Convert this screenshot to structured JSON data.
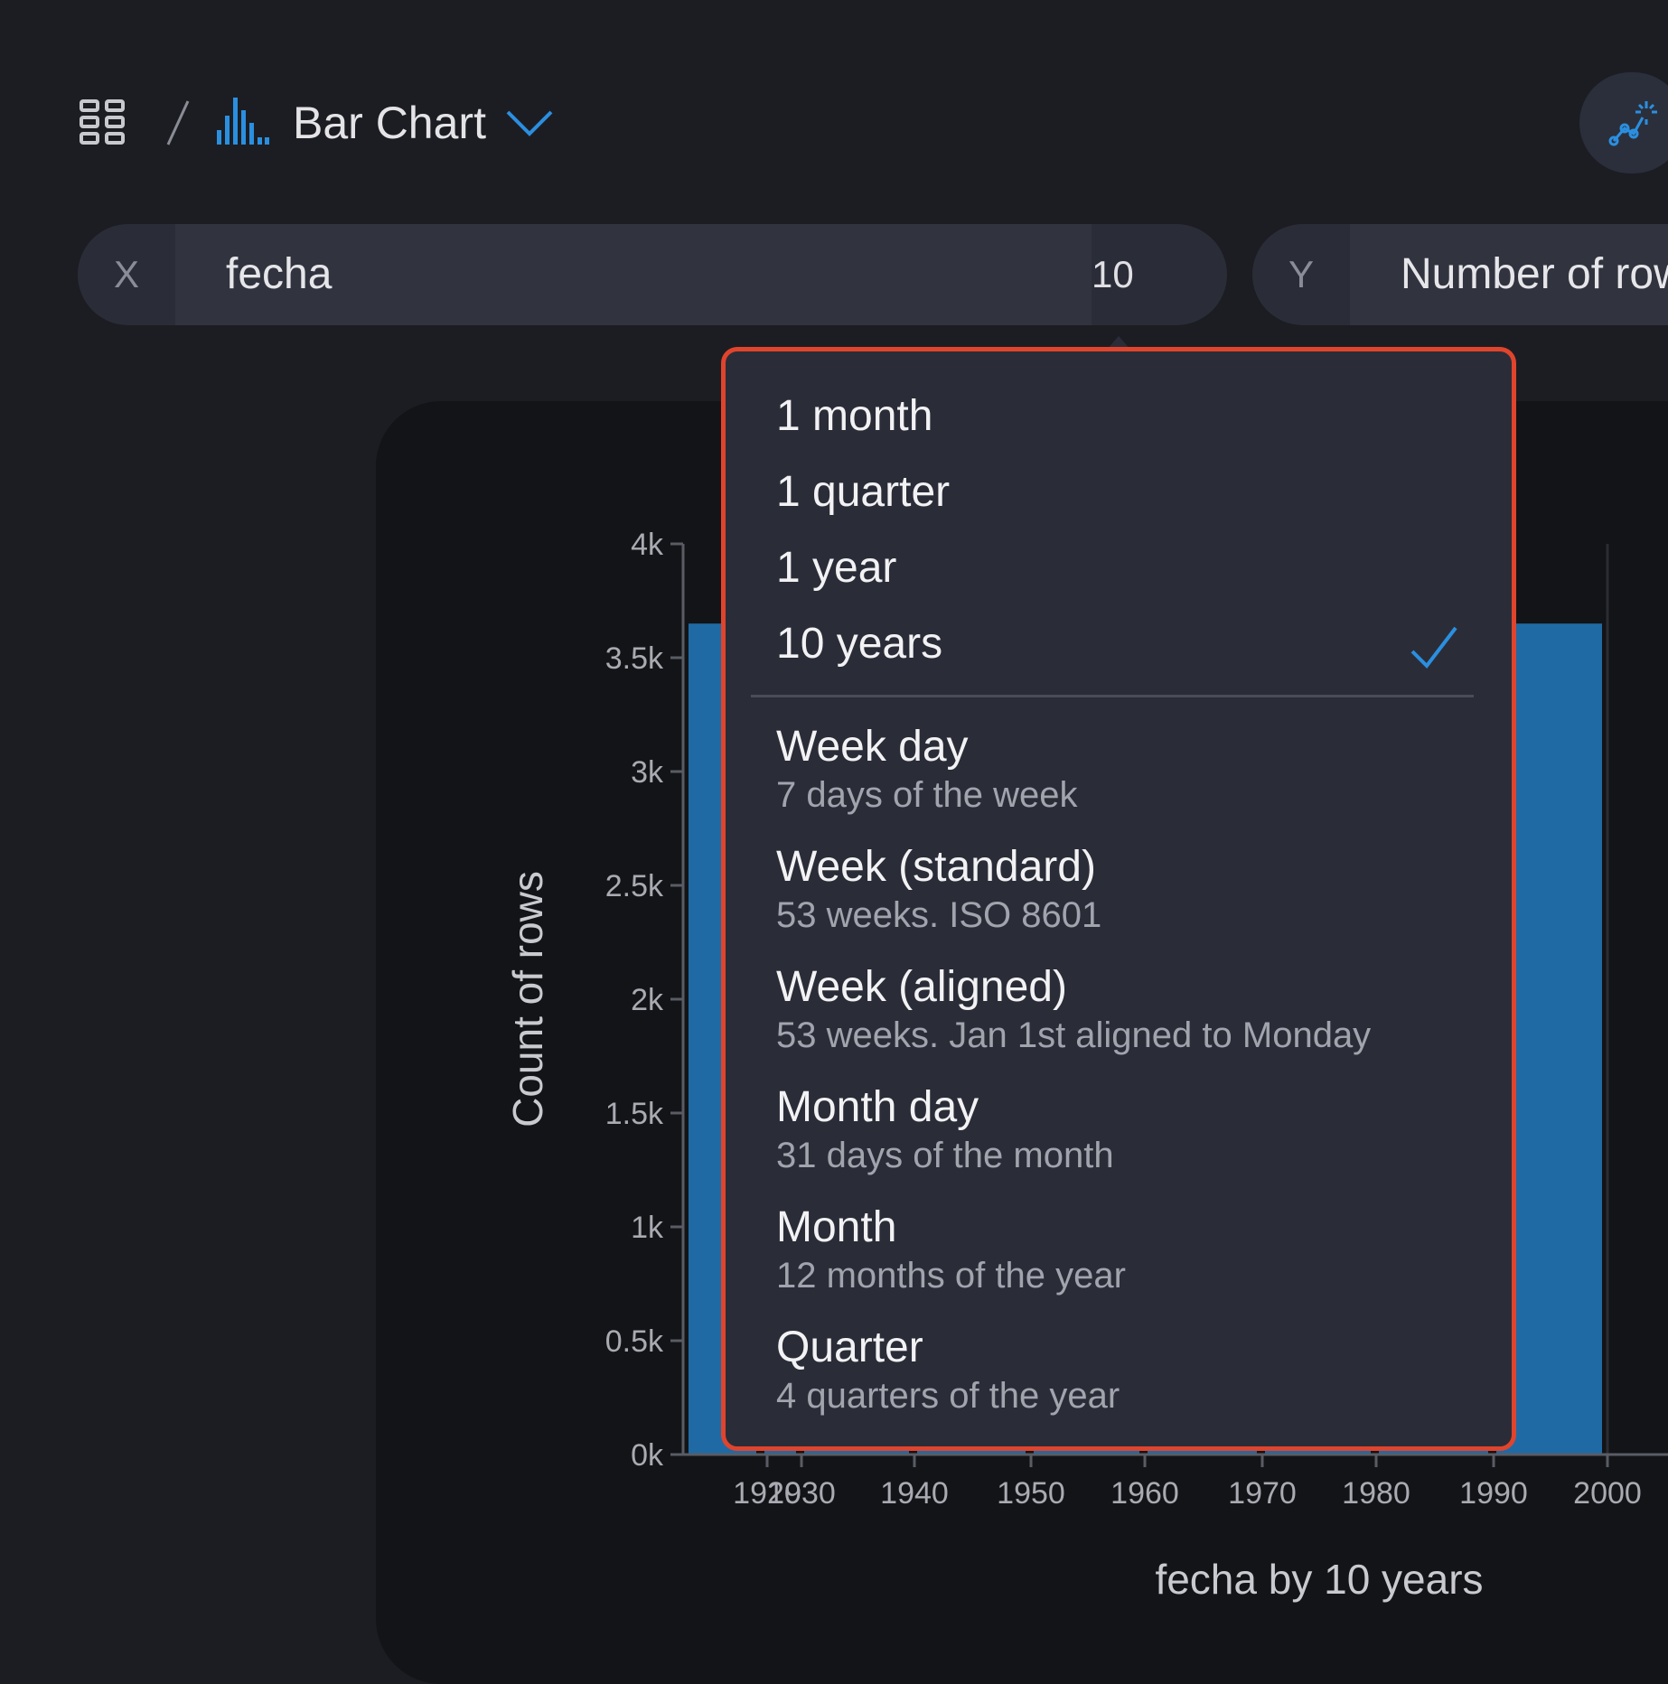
{
  "header": {
    "chart_type_label": "Bar Chart",
    "icons": {
      "nav": "grid-icon",
      "chart": "bar-chart-icon",
      "dropdown": "chevron-down-icon",
      "magic": "magic-wand-icon"
    }
  },
  "x_axis_selector": {
    "key": "X",
    "field": "fecha",
    "bin": "10 years"
  },
  "y_axis_selector": {
    "key": "Y",
    "field": "Number of rows"
  },
  "dropdown": {
    "simple_options": [
      "1 month",
      "1 quarter",
      "1 year",
      "10 years"
    ],
    "selected": "10 years",
    "grouped_options": [
      {
        "label": "Week day",
        "sub": "7 days of the week"
      },
      {
        "label": "Week (standard)",
        "sub": "53 weeks. ISO 8601"
      },
      {
        "label": "Week (aligned)",
        "sub": "53 weeks. Jan 1st aligned to Monday"
      },
      {
        "label": "Month day",
        "sub": "31 days of the month"
      },
      {
        "label": "Month",
        "sub": "12 months of the year"
      },
      {
        "label": "Quarter",
        "sub": "4 quarters of the year"
      }
    ]
  },
  "colors": {
    "bar": "#1f6aa5",
    "accent": "#2b8fe0",
    "highlight_border": "#e0442d"
  },
  "chart_data": {
    "type": "bar",
    "ylabel": "Count of rows",
    "xlabel": "fecha by 10 years",
    "ylim": [
      0,
      4000
    ],
    "y_ticks": [
      "0k",
      "0.5k",
      "1k",
      "1.5k",
      "2k",
      "2.5k",
      "3k",
      "3.5k",
      "4k"
    ],
    "x_ticks": [
      "1920",
      "1930",
      "1940",
      "1950",
      "1960",
      "1970",
      "1980",
      "1990",
      "2000"
    ],
    "categories": [
      "1920",
      "1930",
      "1940",
      "1950",
      "1960",
      "1970",
      "1980",
      "1990",
      "2000"
    ],
    "values": [
      3650,
      3650,
      3650,
      3650,
      3650,
      3650,
      3650,
      3650,
      3650
    ]
  }
}
